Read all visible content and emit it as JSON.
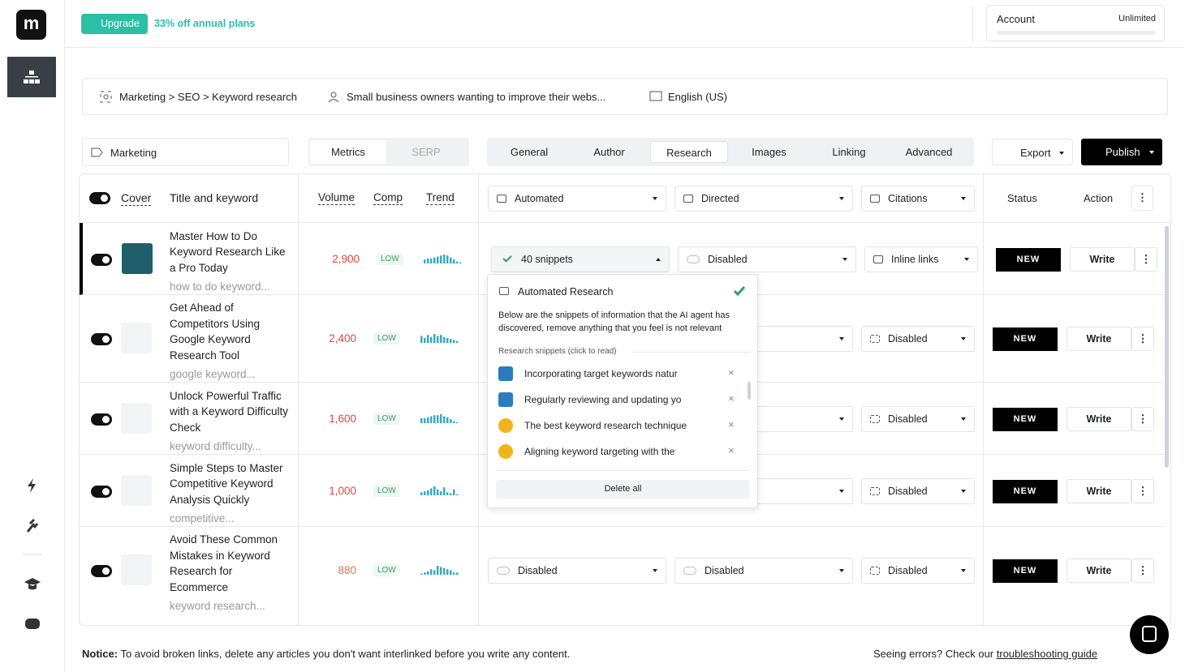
{
  "sidebar": {
    "logo": "m"
  },
  "header": {
    "upgrade": "Upgrade",
    "discount": "33% off annual plans",
    "account": "Account",
    "plan": "Unlimited"
  },
  "breadcrumb": {
    "category": "Marketing > SEO > Keyword research",
    "audience": "Small business owners wanting to improve their webs...",
    "language": "English (US)"
  },
  "toolbar": {
    "tag": "Marketing",
    "views": [
      "Metrics",
      "SERP"
    ],
    "tabs": [
      "General",
      "Author",
      "Research",
      "Images",
      "Linking",
      "Advanced"
    ],
    "export": "Export",
    "publish": "Publish"
  },
  "columns": {
    "cover": "Cover",
    "title": "Title and keyword",
    "volume": "Volume",
    "comp": "Comp",
    "trend": "Trend",
    "automated": "Automated",
    "directed": "Directed",
    "citations": "Citations",
    "status": "Status",
    "action": "Action"
  },
  "rows": [
    {
      "title": "Master How to Do Keyword Research Like a Pro Today",
      "keyword": "how to do keyword...",
      "volume": "2,900",
      "volume_color": "#e0463a",
      "comp": "LOW",
      "trend": [
        4,
        5,
        5,
        6,
        7,
        8,
        9,
        8,
        6,
        4,
        2,
        1
      ],
      "automated": "40 snippets",
      "directed": "Disabled",
      "citations": "Inline links",
      "status": "NEW",
      "action": "Write"
    },
    {
      "title": "Get Ahead of Competitors Using Google Keyword Research Tool",
      "keyword": "google keyword...",
      "volume": "2,400",
      "volume_color": "#e0463a",
      "comp": "LOW",
      "trend": [
        7,
        5,
        8,
        6,
        9,
        7,
        8,
        6,
        5,
        4,
        3,
        2
      ],
      "citations": "Disabled",
      "status": "NEW",
      "action": "Write"
    },
    {
      "title": "Unlock Powerful Traffic with a Keyword Difficulty Check",
      "keyword": "keyword difficulty...",
      "volume": "1,600",
      "volume_color": "#e0463a",
      "comp": "LOW",
      "trend": [
        5,
        5,
        6,
        7,
        8,
        8,
        9,
        7,
        6,
        4,
        2,
        1
      ],
      "citations": "Disabled",
      "status": "NEW",
      "action": "Write"
    },
    {
      "title": "Simple Steps to Master Competitive Keyword Analysis Quickly",
      "keyword": "competitive...",
      "volume": "1,000",
      "volume_color": "#e0463a",
      "comp": "LOW",
      "trend": [
        3,
        4,
        5,
        7,
        9,
        6,
        4,
        8,
        3,
        2,
        6,
        1
      ],
      "citations": "Disabled",
      "status": "NEW",
      "action": "Write"
    },
    {
      "title": "Avoid These Common Mistakes in Keyword Research for Ecommerce",
      "keyword": "keyword research...",
      "volume": "880",
      "volume_color": "#e8704a",
      "comp": "LOW",
      "trend": [
        1,
        2,
        3,
        5,
        4,
        8,
        7,
        6,
        5,
        4,
        2,
        2
      ],
      "automated": "Disabled",
      "directed": "Disabled",
      "citations": "Disabled",
      "status": "NEW",
      "action": "Write"
    }
  ],
  "popup": {
    "title": "Automated Research",
    "description": "Below are the snippets of information that the AI agent has discovered, remove anything that you feel is not relevant",
    "section": "Research snippets (click to read)",
    "snippets": [
      {
        "text": "Incorporating target keywords natur",
        "icon_color": "#2b7bbf"
      },
      {
        "text": "Regularly reviewing and updating yo",
        "icon_color": "#2b7bbf"
      },
      {
        "text": "The best keyword research technique",
        "icon_color": "#f2b41c"
      },
      {
        "text": "Aligning keyword targeting with the",
        "icon_color": "#f2b41c"
      }
    ],
    "delete": "Delete all"
  },
  "notice": {
    "label": "Notice:",
    "text": "To avoid broken links, delete any articles you don't want interlinked before you write any content.",
    "errors": "Seeing errors? Check our",
    "link": "troubleshooting guide"
  }
}
